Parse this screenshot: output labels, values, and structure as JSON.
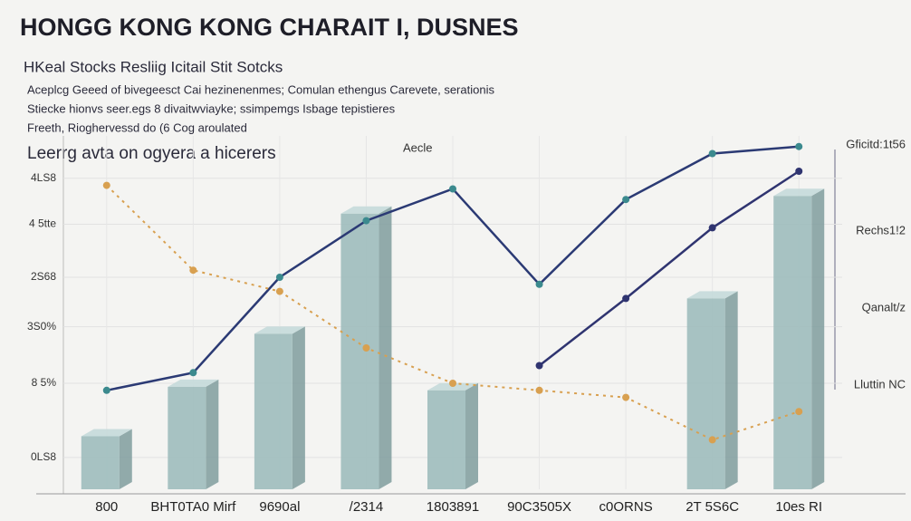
{
  "chart_data": {
    "type": "line",
    "title": "HONGG KONG KONG CHARAIT I, DUSNES",
    "subtitle": "HKeal Stocks Resliig Icitail Stit Sotcks",
    "notes": [
      "Aceplcg Geeed of bivegeesct Cai hezinenenmes; Comulan ethengus Carevete, serationis",
      "Stiecke hionvs seer.egs 8 divaitwviayke; ssimpemgs Isbage tepistieres",
      "Freeth, Rioghervessd do (6 Cog aroulated"
    ],
    "heading": "Leerrg avta on ogyera a hicerers",
    "center_label": "Aecle",
    "right_labels": [
      "Gficitd:1t56",
      "Rechs1!2",
      "Qanalt/z",
      "Lluttin NC"
    ],
    "categories": [
      "800",
      "BHT0TA0 Mirf",
      "9690al",
      "/2314",
      "1803891",
      "90C3505X",
      "c0ORNS",
      "2T 5S6C",
      "10es RI"
    ],
    "ylim": [
      0,
      100
    ],
    "yticks": [
      {
        "value": 9,
        "label": "0LS8"
      },
      {
        "value": 30,
        "label": "8 5%"
      },
      {
        "value": 46,
        "label": "3S0%"
      },
      {
        "value": 60,
        "label": "2S68"
      },
      {
        "value": 75,
        "label": "4 5tte"
      },
      {
        "value": 88,
        "label": "4LS8"
      }
    ],
    "grid": true,
    "bars": {
      "color": "#9fbcbc",
      "values": [
        15,
        29,
        44,
        78,
        28,
        null,
        null,
        54,
        83
      ]
    },
    "series": [
      {
        "color": "#2b3a74",
        "values": [
          28,
          33,
          60,
          76,
          85,
          58,
          82,
          95,
          97
        ]
      },
      {
        "color": "#2f3470",
        "values": [
          null,
          null,
          null,
          null,
          null,
          35,
          54,
          74,
          90
        ]
      },
      {
        "color": "#d8a050",
        "values": [
          86,
          62,
          56,
          40,
          30,
          28,
          26,
          14,
          22
        ]
      }
    ]
  }
}
